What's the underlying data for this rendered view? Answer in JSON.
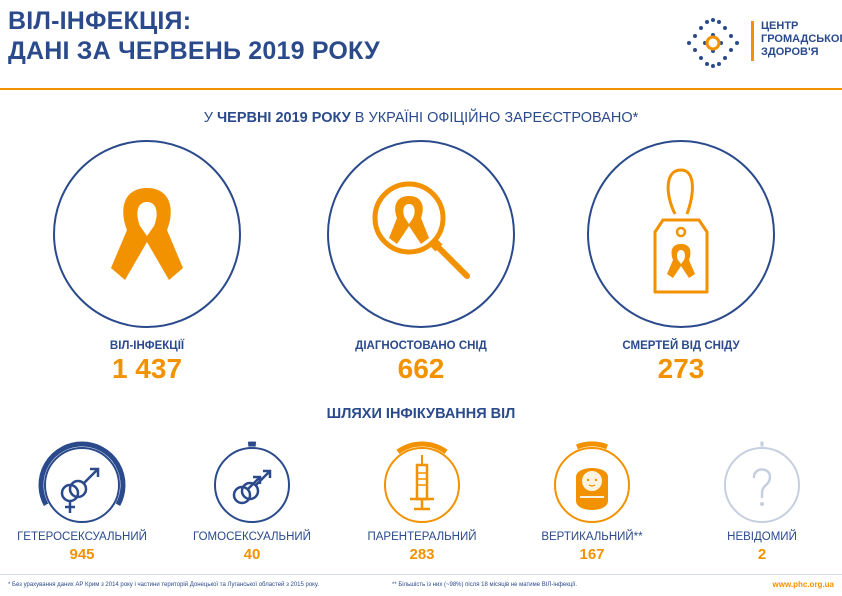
{
  "header": {
    "title_line1": "ВІЛ-ІНФЕКЦІЯ:",
    "title_line2": "ДАНІ ЗА ЧЕРВЕНЬ 2019 РОКУ"
  },
  "logo": {
    "line1": "ЦЕНТР",
    "line2": "ГРОМАДСЬКОГО",
    "line3": "ЗДОРОВ'Я"
  },
  "registered": {
    "part1": "У ",
    "part2": "ЧЕРВНІ 2019 РОКУ",
    "part3": " В УКРАЇНІ ОФІЦІЙНО ЗАРЕЄСТРОВАНО*"
  },
  "stats": [
    {
      "label": "ВІЛ-ІНФЕКЦІЇ",
      "value": "1 437",
      "icon": "ribbon-icon"
    },
    {
      "label": "ДІАГНОСТОВАНО СНІД",
      "value": "662",
      "icon": "magnifier-ribbon-icon"
    },
    {
      "label": "СМЕРТЕЙ ВІД СНІДУ",
      "value": "273",
      "icon": "tag-ribbon-icon"
    }
  ],
  "routes_title": "ШЛЯХИ ІНФІКУВАННЯ ВІЛ",
  "routes": [
    {
      "label": "ГЕТЕРОСЕКСУАЛЬНИЙ",
      "value": "945",
      "icon": "heterosexual-icon",
      "fraction": 0.66
    },
    {
      "label": "ГОМОСЕКСУАЛЬНИЙ",
      "value": "40",
      "icon": "homosexual-icon",
      "fraction": 0.03
    },
    {
      "label": "ПАРЕНТЕРАЛЬНИЙ",
      "value": "283",
      "icon": "syringe-icon",
      "fraction": 0.2
    },
    {
      "label": "ВЕРТИКАЛЬНИЙ**",
      "value": "167",
      "icon": "baby-icon",
      "fraction": 0.12
    },
    {
      "label": "НЕВІДОМИЙ",
      "value": "2",
      "icon": "question-icon",
      "fraction": 0.001
    }
  ],
  "footnotes": {
    "note1": "* Без урахування даних АР Крим з 2014 року і частини територій Донецької та Луганської областей з 2015 року.",
    "note2": "** Більшість із них (~98%) після 18 місяців не матиме ВІЛ-інфекції.",
    "site": "www.phc.org.ua"
  },
  "colors": {
    "navy": "#2a4a8c",
    "orange": "#f39200",
    "light": "#c6cfdf"
  }
}
